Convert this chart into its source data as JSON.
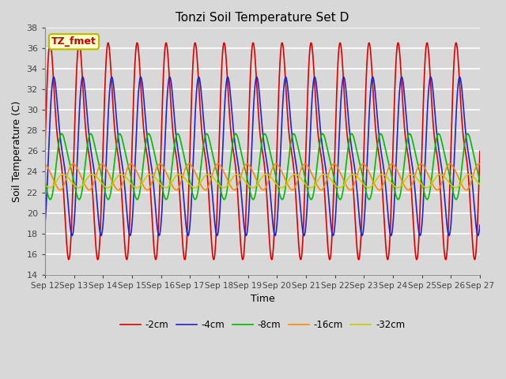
{
  "title": "Tonzi Soil Temperature Set D",
  "xlabel": "Time",
  "ylabel": "Soil Temperature (C)",
  "ylim": [
    14,
    38
  ],
  "yticks": [
    14,
    16,
    18,
    20,
    22,
    24,
    26,
    28,
    30,
    32,
    34,
    36,
    38
  ],
  "annotation_text": "TZ_fmet",
  "annotation_color": "#cc0000",
  "annotation_bg": "#ffffcc",
  "annotation_border": "#bbbb00",
  "series": [
    {
      "label": "-2cm",
      "color": "#dd0000"
    },
    {
      "label": "-4cm",
      "color": "#2222cc"
    },
    {
      "label": "-8cm",
      "color": "#00bb00"
    },
    {
      "label": "-16cm",
      "color": "#ff8800"
    },
    {
      "label": "-32cm",
      "color": "#cccc00"
    }
  ],
  "xtick_labels": [
    "Sep 12",
    "Sep 13",
    "Sep 14",
    "Sep 15",
    "Sep 16",
    "Sep 17",
    "Sep 18",
    "Sep 19",
    "Sep 20",
    "Sep 21",
    "Sep 22",
    "Sep 23",
    "Sep 24",
    "Sep 25",
    "Sep 26",
    "Sep 27"
  ],
  "background_color": "#d8d8d8",
  "plot_bg_color": "#d8d8d8",
  "grid_color": "#ffffff",
  "linewidth": 1.2
}
